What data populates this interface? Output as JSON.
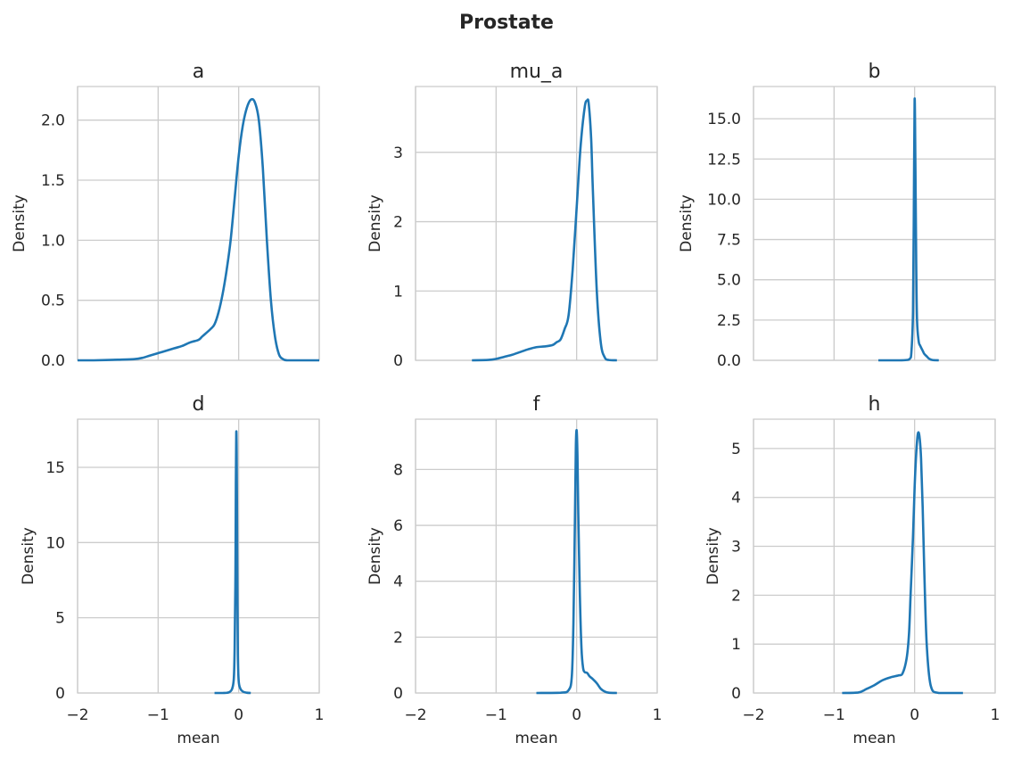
{
  "figure": {
    "title": "Prostate"
  },
  "style": {
    "line_color": "#1f77b4",
    "grid_color": "#cccccc",
    "spine_color": "#cccccc"
  },
  "chart_data": [
    {
      "type": "line",
      "title": "a",
      "xlabel": "",
      "ylabel": "Density",
      "xlim": [
        -2,
        1
      ],
      "ylim": [
        0,
        2.28
      ],
      "grid": true,
      "xticks": [
        -2,
        -1,
        0,
        1
      ],
      "xtick_labels": [],
      "yticks": [
        0,
        0.5,
        1.0,
        1.5,
        2.0
      ],
      "ytick_labels": [
        "0.0",
        "0.5",
        "1.0",
        "1.5",
        "2.0"
      ],
      "series": [
        {
          "x": [
            -2.0,
            -1.8,
            -1.5,
            -1.3,
            -1.2,
            -1.1,
            -1.0,
            -0.9,
            -0.8,
            -0.7,
            -0.6,
            -0.5,
            -0.45,
            -0.35,
            -0.3,
            -0.25,
            -0.2,
            -0.15,
            -0.1,
            -0.05,
            0.0,
            0.05,
            0.1,
            0.15,
            0.2,
            0.25,
            0.3,
            0.35,
            0.4,
            0.45,
            0.5,
            0.55,
            0.6,
            0.7,
            0.8,
            1.0
          ],
          "y": [
            0.0,
            0.0,
            0.005,
            0.01,
            0.02,
            0.04,
            0.06,
            0.08,
            0.1,
            0.12,
            0.15,
            0.17,
            0.2,
            0.26,
            0.3,
            0.4,
            0.55,
            0.75,
            1.0,
            1.35,
            1.7,
            1.95,
            2.1,
            2.17,
            2.15,
            2.0,
            1.6,
            1.0,
            0.5,
            0.2,
            0.05,
            0.01,
            0.0,
            0.0,
            0.0,
            0.0
          ]
        }
      ]
    },
    {
      "type": "line",
      "title": "mu_a",
      "xlabel": "",
      "ylabel": "Density",
      "xlim": [
        -2,
        1
      ],
      "ylim": [
        0,
        3.95
      ],
      "grid": true,
      "xticks": [
        -2,
        -1,
        0,
        1
      ],
      "xtick_labels": [],
      "yticks": [
        0,
        1,
        2,
        3
      ],
      "ytick_labels": [
        "0",
        "1",
        "2",
        "3"
      ],
      "series": [
        {
          "x": [
            -1.3,
            -1.1,
            -1.0,
            -0.9,
            -0.8,
            -0.7,
            -0.6,
            -0.5,
            -0.4,
            -0.3,
            -0.25,
            -0.2,
            -0.15,
            -0.1,
            -0.05,
            0.0,
            0.05,
            0.1,
            0.13,
            0.15,
            0.18,
            0.2,
            0.25,
            0.3,
            0.35,
            0.4,
            0.5
          ],
          "y": [
            0.0,
            0.005,
            0.02,
            0.05,
            0.08,
            0.12,
            0.16,
            0.19,
            0.2,
            0.22,
            0.26,
            0.3,
            0.45,
            0.65,
            1.3,
            2.2,
            3.1,
            3.65,
            3.75,
            3.7,
            3.2,
            2.5,
            1.0,
            0.25,
            0.04,
            0.005,
            0.0
          ]
        }
      ]
    },
    {
      "type": "line",
      "title": "b",
      "xlabel": "",
      "ylabel": "Density",
      "xlim": [
        -2,
        1
      ],
      "ylim": [
        0,
        17
      ],
      "grid": true,
      "xticks": [
        -2,
        -1,
        0,
        1
      ],
      "xtick_labels": [],
      "yticks": [
        0,
        2.5,
        5,
        7.5,
        10,
        12.5,
        15
      ],
      "ytick_labels": [
        "0.0",
        "2.5",
        "5.0",
        "7.5",
        "10.0",
        "12.5",
        "15.0"
      ],
      "series": [
        {
          "x": [
            -0.45,
            -0.2,
            -0.1,
            -0.06,
            -0.04,
            -0.02,
            -0.01,
            0.0,
            0.01,
            0.02,
            0.03,
            0.05,
            0.07,
            0.1,
            0.12,
            0.15,
            0.18,
            0.22,
            0.3
          ],
          "y": [
            0.0,
            0.0,
            0.02,
            0.1,
            0.5,
            3.0,
            9.0,
            16.2,
            12.0,
            6.0,
            2.5,
            1.2,
            0.9,
            0.6,
            0.4,
            0.25,
            0.1,
            0.02,
            0.0
          ]
        }
      ]
    },
    {
      "type": "line",
      "title": "d",
      "xlabel": "",
      "ylabel": "Density",
      "xlim": [
        -2,
        1
      ],
      "ylim": [
        0,
        18.2
      ],
      "grid": true,
      "xticks": [
        -2,
        -1,
        0,
        1
      ],
      "xtick_labels": [
        "−2",
        "−1",
        "0",
        "1"
      ],
      "yticks": [
        0,
        5,
        10,
        15
      ],
      "ytick_labels": [
        "0",
        "5",
        "10",
        "15"
      ],
      "series": [
        {
          "x": [
            -0.3,
            -0.2,
            -0.12,
            -0.08,
            -0.06,
            -0.05,
            -0.04,
            -0.035,
            -0.03,
            -0.025,
            -0.02,
            -0.015,
            -0.01,
            0.0,
            0.02,
            0.05,
            0.1,
            0.15
          ],
          "y": [
            0.0,
            0.0,
            0.05,
            0.3,
            1.0,
            3.0,
            8.0,
            14.0,
            17.3,
            16.0,
            11.0,
            6.0,
            2.5,
            0.8,
            0.3,
            0.1,
            0.02,
            0.0
          ]
        }
      ]
    },
    {
      "type": "line",
      "title": "f",
      "xlabel": "",
      "ylabel": "Density",
      "xlim": [
        -2,
        1
      ],
      "ylim": [
        0,
        9.8
      ],
      "grid": true,
      "xticks": [
        -2,
        -1,
        0,
        1
      ],
      "xtick_labels": [
        "−2",
        "−1",
        "0",
        "1"
      ],
      "yticks": [
        0,
        2,
        4,
        6,
        8
      ],
      "ytick_labels": [
        "0",
        "2",
        "4",
        "6",
        "8"
      ],
      "series": [
        {
          "x": [
            -0.5,
            -0.2,
            -0.1,
            -0.06,
            -0.04,
            -0.02,
            -0.01,
            0.0,
            0.01,
            0.02,
            0.04,
            0.06,
            0.08,
            0.1,
            0.13,
            0.16,
            0.2,
            0.25,
            0.3,
            0.35,
            0.4,
            0.5
          ],
          "y": [
            0.0,
            0.01,
            0.1,
            0.6,
            2.5,
            6.5,
            8.8,
            9.4,
            8.5,
            6.5,
            3.5,
            1.6,
            0.9,
            0.75,
            0.72,
            0.6,
            0.5,
            0.35,
            0.15,
            0.05,
            0.01,
            0.0
          ]
        }
      ]
    },
    {
      "type": "line",
      "title": "h",
      "xlabel": "",
      "ylabel": "Density",
      "xlim": [
        -2,
        1
      ],
      "ylim": [
        0,
        5.6
      ],
      "grid": true,
      "xticks": [
        -2,
        -1,
        0,
        1
      ],
      "xtick_labels": [
        "−2",
        "−1",
        "0",
        "1"
      ],
      "yticks": [
        0,
        1,
        2,
        3,
        4,
        5
      ],
      "ytick_labels": [
        "0",
        "1",
        "2",
        "3",
        "4",
        "5"
      ],
      "series": [
        {
          "x": [
            -0.9,
            -0.7,
            -0.6,
            -0.5,
            -0.4,
            -0.3,
            -0.2,
            -0.15,
            -0.1,
            -0.07,
            -0.05,
            -0.02,
            0.0,
            0.02,
            0.04,
            0.06,
            0.08,
            0.1,
            0.12,
            0.15,
            0.2,
            0.3,
            0.6
          ],
          "y": [
            0.0,
            0.01,
            0.08,
            0.16,
            0.26,
            0.32,
            0.36,
            0.4,
            0.7,
            1.2,
            2.0,
            3.2,
            4.2,
            4.9,
            5.3,
            5.25,
            4.8,
            3.8,
            2.5,
            1.0,
            0.15,
            0.0,
            0.0
          ]
        }
      ]
    }
  ],
  "panels_xlabel": [
    "",
    "",
    "",
    "mean",
    "mean",
    "mean"
  ]
}
